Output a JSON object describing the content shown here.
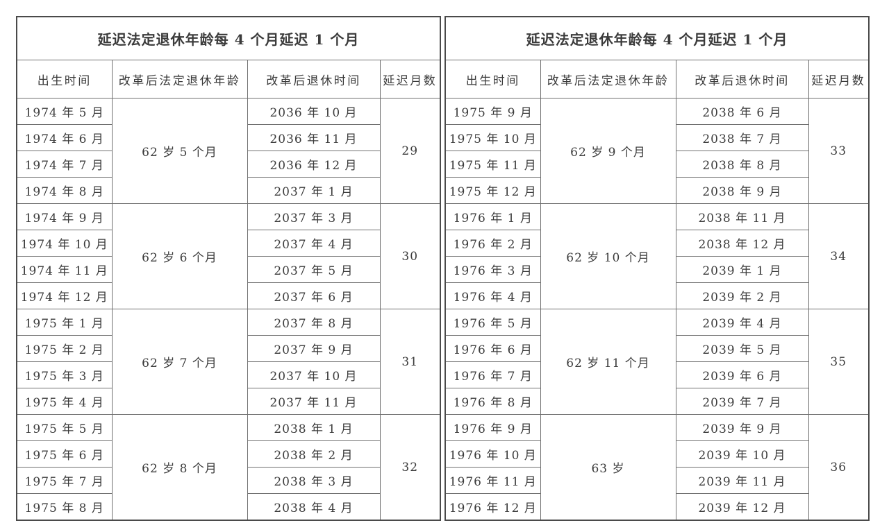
{
  "colors": {
    "page_background": "#ffffff",
    "cell_background": "#ffffff",
    "outer_border": "#4a4a4a",
    "grid_line": "#6f6f6f",
    "text": "#3b3b3b"
  },
  "tables": [
    {
      "title": "延迟法定退休年龄每 4 个月延迟 1 个月",
      "headers": [
        "出生时间",
        "改革后法定退休年龄",
        "改革后退休时间",
        "延迟月数"
      ],
      "groups": [
        {
          "births": [
            "1974 年 5 月",
            "1974 年 6 月",
            "1974 年 7 月",
            "1974 年 8 月"
          ],
          "age": "62 岁 5 个月",
          "retirements": [
            "2036 年 10 月",
            "2036 年 11 月",
            "2036 年 12 月",
            "2037 年 1 月"
          ],
          "delay_months": "29"
        },
        {
          "births": [
            "1974 年 9 月",
            "1974 年 10 月",
            "1974 年 11 月",
            "1974 年 12 月"
          ],
          "age": "62 岁 6 个月",
          "retirements": [
            "2037 年 3 月",
            "2037 年 4 月",
            "2037 年 5 月",
            "2037 年 6 月"
          ],
          "delay_months": "30"
        },
        {
          "births": [
            "1975 年 1 月",
            "1975 年 2 月",
            "1975 年 3 月",
            "1975 年 4 月"
          ],
          "age": "62 岁 7 个月",
          "retirements": [
            "2037 年 8 月",
            "2037 年 9 月",
            "2037 年 10 月",
            "2037 年 11 月"
          ],
          "delay_months": "31"
        },
        {
          "births": [
            "1975 年 5 月",
            "1975 年 6 月",
            "1975 年 7 月",
            "1975 年 8 月"
          ],
          "age": "62 岁 8 个月",
          "retirements": [
            "2038 年 1 月",
            "2038 年 2 月",
            "2038 年 3 月",
            "2038 年 4 月"
          ],
          "delay_months": "32"
        }
      ]
    },
    {
      "title": "延迟法定退休年龄每 4 个月延迟 1 个月",
      "headers": [
        "出生时间",
        "改革后法定退休年龄",
        "改革后退休时间",
        "延迟月数"
      ],
      "groups": [
        {
          "births": [
            "1975 年 9 月",
            "1975 年 10 月",
            "1975 年 11 月",
            "1975 年 12 月"
          ],
          "age": "62 岁 9 个月",
          "retirements": [
            "2038 年 6 月",
            "2038 年 7 月",
            "2038 年 8 月",
            "2038 年 9 月"
          ],
          "delay_months": "33"
        },
        {
          "births": [
            "1976 年 1 月",
            "1976 年 2 月",
            "1976 年 3 月",
            "1976 年 4 月"
          ],
          "age": "62 岁 10 个月",
          "retirements": [
            "2038 年 11 月",
            "2038 年 12 月",
            "2039 年 1 月",
            "2039 年 2 月"
          ],
          "delay_months": "34"
        },
        {
          "births": [
            "1976 年 5 月",
            "1976 年 6 月",
            "1976 年 7 月",
            "1976 年 8 月"
          ],
          "age": "62 岁 11 个月",
          "retirements": [
            "2039 年 4 月",
            "2039 年 5 月",
            "2039 年 6 月",
            "2039 年 7 月"
          ],
          "delay_months": "35"
        },
        {
          "births": [
            "1976 年 9 月",
            "1976 年 10 月",
            "1976 年 11 月",
            "1976 年 12 月"
          ],
          "age": "63 岁",
          "retirements": [
            "2039 年 9 月",
            "2039 年 10 月",
            "2039 年 11 月",
            "2039 年 12 月"
          ],
          "delay_months": "36"
        }
      ]
    }
  ]
}
